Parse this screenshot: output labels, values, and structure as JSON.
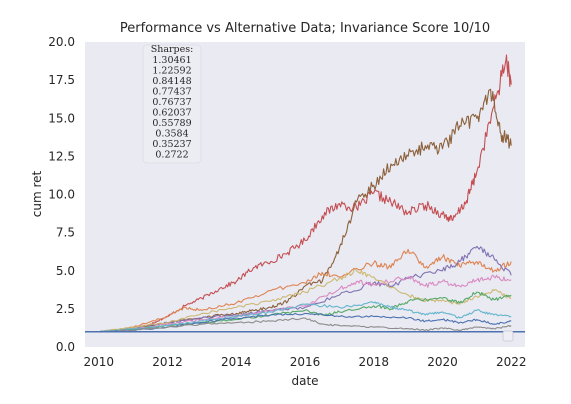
{
  "chart_data": {
    "type": "line",
    "title": "Performance vs Alternative Data; Invariance Score 10/10",
    "xlabel": "date",
    "ylabel": "cum ret",
    "xlim": [
      2009.6,
      2022.4
    ],
    "ylim": [
      0,
      20
    ],
    "x_ticks": [
      "2010",
      "2012",
      "2014",
      "2016",
      "2018",
      "2020",
      "2022"
    ],
    "y_ticks": [
      "0.0",
      "2.5",
      "5.0",
      "7.5",
      "10.0",
      "12.5",
      "15.0",
      "17.5",
      "20.0"
    ],
    "grid": false,
    "background": "#eaeaf2",
    "sharpes_box": {
      "title": "Sharpes:",
      "values": [
        "1.30461",
        "1.22592",
        "0.84148",
        "0.77437",
        "0.76737",
        "0.62037",
        "0.55789",
        "0.3584",
        "0.35237",
        "0.2722"
      ]
    },
    "baseline": {
      "value": 1.0,
      "color": "#4c72b0"
    },
    "series": [
      {
        "color": "#c44e52",
        "points": [
          [
            2010.0,
            1.0
          ],
          [
            2010.5,
            1.02
          ],
          [
            2011.0,
            1.2
          ],
          [
            2011.5,
            1.5
          ],
          [
            2012.0,
            2.0
          ],
          [
            2012.5,
            2.7
          ],
          [
            2013.0,
            3.2
          ],
          [
            2013.5,
            3.8
          ],
          [
            2014.0,
            4.3
          ],
          [
            2014.5,
            5.2
          ],
          [
            2015.0,
            5.6
          ],
          [
            2015.5,
            6.2
          ],
          [
            2016.0,
            7.0
          ],
          [
            2016.5,
            8.6
          ],
          [
            2017.0,
            9.4
          ],
          [
            2017.5,
            9.1
          ],
          [
            2018.0,
            10.1
          ],
          [
            2018.5,
            9.5
          ],
          [
            2019.0,
            8.8
          ],
          [
            2019.5,
            9.3
          ],
          [
            2020.0,
            8.7
          ],
          [
            2020.3,
            8.3
          ],
          [
            2020.7,
            9.6
          ],
          [
            2021.0,
            11.5
          ],
          [
            2021.5,
            15.8
          ],
          [
            2021.85,
            18.9
          ],
          [
            2022.0,
            17.2
          ]
        ]
      },
      {
        "color": "#8c613c",
        "points": [
          [
            2010.0,
            1.0
          ],
          [
            2010.5,
            1.03
          ],
          [
            2011.0,
            1.2
          ],
          [
            2011.5,
            1.4
          ],
          [
            2012.0,
            1.6
          ],
          [
            2012.5,
            1.8
          ],
          [
            2013.0,
            1.9
          ],
          [
            2013.5,
            2.1
          ],
          [
            2014.0,
            2.2
          ],
          [
            2014.5,
            2.4
          ],
          [
            2015.0,
            2.6
          ],
          [
            2015.5,
            3.0
          ],
          [
            2016.0,
            4.0
          ],
          [
            2016.5,
            4.3
          ],
          [
            2017.0,
            6.5
          ],
          [
            2017.5,
            9.5
          ],
          [
            2018.0,
            10.6
          ],
          [
            2018.5,
            12.0
          ],
          [
            2019.0,
            12.5
          ],
          [
            2019.5,
            13.2
          ],
          [
            2020.0,
            13.0
          ],
          [
            2020.5,
            14.5
          ],
          [
            2021.0,
            15.0
          ],
          [
            2021.4,
            16.9
          ],
          [
            2021.7,
            14.0
          ],
          [
            2022.0,
            13.2
          ]
        ]
      },
      {
        "color": "#dd8452",
        "points": [
          [
            2010.0,
            1.0
          ],
          [
            2011.0,
            1.3
          ],
          [
            2012.0,
            2.0
          ],
          [
            2012.5,
            2.6
          ],
          [
            2013.0,
            2.4
          ],
          [
            2014.0,
            2.9
          ],
          [
            2015.0,
            3.7
          ],
          [
            2016.0,
            4.2
          ],
          [
            2016.5,
            4.9
          ],
          [
            2017.0,
            4.6
          ],
          [
            2018.0,
            5.5
          ],
          [
            2018.5,
            5.2
          ],
          [
            2019.0,
            6.4
          ],
          [
            2019.5,
            5.2
          ],
          [
            2020.0,
            5.9
          ],
          [
            2020.5,
            5.3
          ],
          [
            2021.0,
            5.6
          ],
          [
            2021.5,
            5.0
          ],
          [
            2022.0,
            5.6
          ]
        ]
      },
      {
        "color": "#8172b3",
        "points": [
          [
            2010.0,
            1.0
          ],
          [
            2011.0,
            1.25
          ],
          [
            2012.0,
            1.6
          ],
          [
            2013.0,
            1.9
          ],
          [
            2014.0,
            2.1
          ],
          [
            2015.0,
            2.4
          ],
          [
            2016.0,
            2.6
          ],
          [
            2017.0,
            3.4
          ],
          [
            2018.0,
            4.2
          ],
          [
            2018.5,
            4.0
          ],
          [
            2019.0,
            4.5
          ],
          [
            2020.0,
            5.0
          ],
          [
            2020.5,
            5.6
          ],
          [
            2021.0,
            6.6
          ],
          [
            2021.5,
            5.8
          ],
          [
            2022.0,
            4.7
          ]
        ]
      },
      {
        "color": "#da8bc3",
        "points": [
          [
            2010.0,
            1.0
          ],
          [
            2011.0,
            1.2
          ],
          [
            2012.0,
            1.5
          ],
          [
            2013.0,
            1.8
          ],
          [
            2014.0,
            2.0
          ],
          [
            2015.0,
            2.4
          ],
          [
            2016.0,
            2.7
          ],
          [
            2017.0,
            3.8
          ],
          [
            2017.5,
            4.3
          ],
          [
            2018.0,
            4.1
          ],
          [
            2019.0,
            4.6
          ],
          [
            2019.5,
            4.0
          ],
          [
            2020.0,
            4.3
          ],
          [
            2020.5,
            4.0
          ],
          [
            2021.0,
            4.4
          ],
          [
            2021.5,
            4.6
          ],
          [
            2022.0,
            4.4
          ]
        ]
      },
      {
        "color": "#ccb974",
        "points": [
          [
            2010.0,
            1.0
          ],
          [
            2011.0,
            1.3
          ],
          [
            2012.0,
            1.6
          ],
          [
            2013.0,
            2.2
          ],
          [
            2014.0,
            2.6
          ],
          [
            2015.0,
            3.0
          ],
          [
            2016.0,
            3.6
          ],
          [
            2017.0,
            4.5
          ],
          [
            2017.5,
            5.0
          ],
          [
            2018.0,
            4.6
          ],
          [
            2019.0,
            3.4
          ],
          [
            2019.5,
            3.0
          ],
          [
            2020.0,
            3.1
          ],
          [
            2020.5,
            2.8
          ],
          [
            2021.0,
            3.3
          ],
          [
            2021.5,
            3.7
          ],
          [
            2022.0,
            3.2
          ]
        ]
      },
      {
        "color": "#55a868",
        "points": [
          [
            2010.0,
            1.0
          ],
          [
            2011.0,
            1.15
          ],
          [
            2012.0,
            1.4
          ],
          [
            2013.0,
            1.6
          ],
          [
            2014.0,
            1.8
          ],
          [
            2015.0,
            2.1
          ],
          [
            2016.0,
            2.4
          ],
          [
            2016.5,
            2.1
          ],
          [
            2017.0,
            2.3
          ],
          [
            2018.0,
            2.7
          ],
          [
            2018.5,
            2.5
          ],
          [
            2019.0,
            3.0
          ],
          [
            2020.0,
            3.2
          ],
          [
            2020.5,
            2.9
          ],
          [
            2021.0,
            3.6
          ],
          [
            2021.5,
            3.1
          ],
          [
            2022.0,
            3.4
          ]
        ]
      },
      {
        "color": "#64b5cd",
        "points": [
          [
            2010.0,
            1.0
          ],
          [
            2011.0,
            1.2
          ],
          [
            2012.0,
            1.4
          ],
          [
            2013.0,
            1.7
          ],
          [
            2014.0,
            2.0
          ],
          [
            2015.0,
            2.3
          ],
          [
            2016.0,
            2.8
          ],
          [
            2017.0,
            2.6
          ],
          [
            2018.0,
            2.9
          ],
          [
            2018.5,
            2.6
          ],
          [
            2019.0,
            2.4
          ],
          [
            2019.5,
            2.1
          ],
          [
            2020.0,
            2.3
          ],
          [
            2020.5,
            1.9
          ],
          [
            2021.0,
            2.4
          ],
          [
            2021.5,
            2.1
          ],
          [
            2022.0,
            2.0
          ]
        ]
      },
      {
        "color": "#4c72b0",
        "points": [
          [
            2010.0,
            1.0
          ],
          [
            2011.0,
            1.1
          ],
          [
            2012.0,
            1.3
          ],
          [
            2013.0,
            1.6
          ],
          [
            2014.0,
            1.9
          ],
          [
            2015.0,
            2.1
          ],
          [
            2016.0,
            2.2
          ],
          [
            2017.0,
            2.0
          ],
          [
            2018.0,
            2.0
          ],
          [
            2019.0,
            1.9
          ],
          [
            2019.5,
            1.7
          ],
          [
            2020.0,
            1.8
          ],
          [
            2020.5,
            1.6
          ],
          [
            2021.0,
            1.8
          ],
          [
            2021.5,
            1.5
          ],
          [
            2022.0,
            1.7
          ]
        ]
      },
      {
        "color": "#8c8c8c",
        "points": [
          [
            2010.0,
            1.0
          ],
          [
            2011.0,
            1.1
          ],
          [
            2012.0,
            1.3
          ],
          [
            2013.0,
            1.5
          ],
          [
            2014.0,
            1.6
          ],
          [
            2015.0,
            1.7
          ],
          [
            2016.0,
            1.9
          ],
          [
            2016.5,
            1.5
          ],
          [
            2017.0,
            1.4
          ],
          [
            2018.0,
            1.3
          ],
          [
            2019.0,
            1.2
          ],
          [
            2019.5,
            1.1
          ],
          [
            2020.0,
            1.25
          ],
          [
            2020.5,
            1.1
          ],
          [
            2021.0,
            1.3
          ],
          [
            2021.5,
            1.2
          ],
          [
            2022.0,
            1.4
          ]
        ]
      }
    ]
  }
}
